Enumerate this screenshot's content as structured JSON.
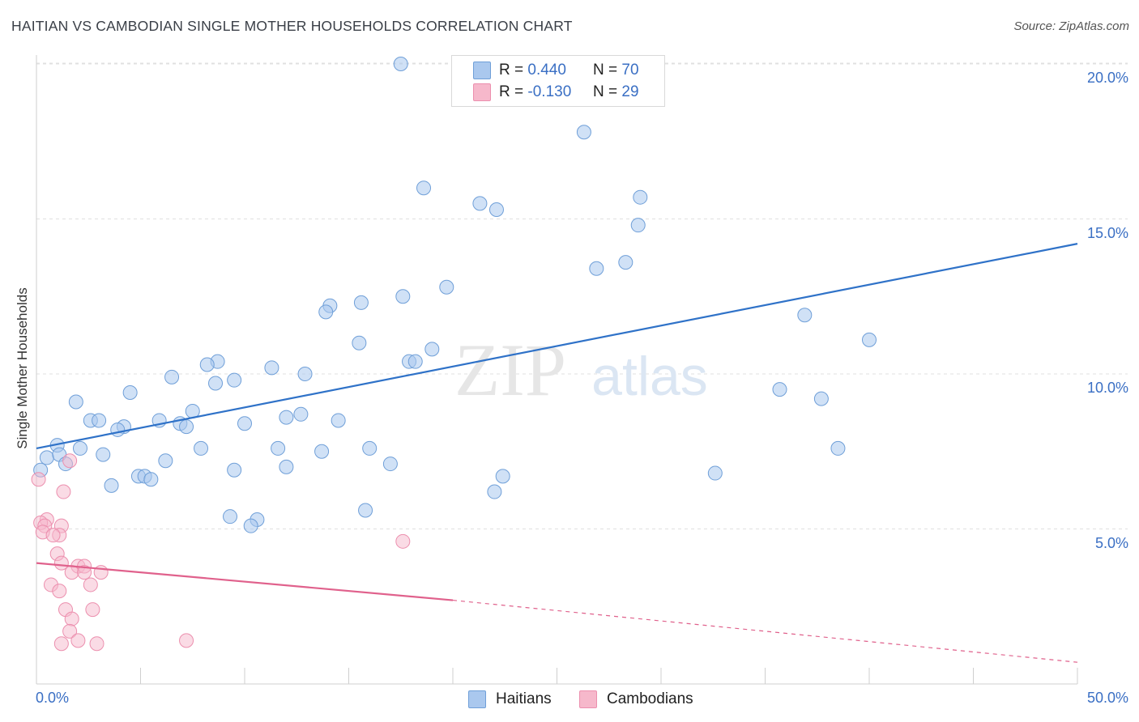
{
  "title": "HAITIAN VS CAMBODIAN SINGLE MOTHER HOUSEHOLDS CORRELATION CHART",
  "source": "Source: ZipAtlas.com",
  "watermark": {
    "zip": "ZIP",
    "atlas": "atlas"
  },
  "legend": {
    "haitians": {
      "r_label": "R =",
      "r_value": "0.440",
      "n_label": "N =",
      "n_value": "70"
    },
    "cambodians": {
      "r_label": "R =",
      "r_value": "-0.130",
      "n_label": "N =",
      "n_value": "29"
    }
  },
  "bottom_legend": {
    "haitians": "Haitians",
    "cambodians": "Cambodians"
  },
  "colors": {
    "haitians_fill": "#aac8ee",
    "haitians_stroke": "#6f9fd8",
    "haitians_line": "#2f72c8",
    "cambodians_fill": "#f6b8cb",
    "cambodians_stroke": "#ec8fae",
    "cambodians_line": "#e0618c",
    "tick_text": "#3a6fc4",
    "grid": "#e0e0e0"
  },
  "chart_data": {
    "type": "scatter",
    "title": "HAITIAN VS CAMBODIAN SINGLE MOTHER HOUSEHOLDS CORRELATION CHART",
    "xlabel": "",
    "ylabel": "Single Mother Households",
    "xlim": [
      0,
      50
    ],
    "ylim": [
      0,
      20.5
    ],
    "x_tick_labels": [
      "0.0%",
      "50.0%"
    ],
    "y_tick_values": [
      5,
      10,
      15,
      20
    ],
    "y_tick_labels": [
      "5.0%",
      "10.0%",
      "15.0%",
      "20.0%"
    ],
    "grid": "horizontal dashed",
    "legend_position": "top-center",
    "series": [
      {
        "name": "Haitians",
        "r": 0.44,
        "n": 70,
        "trend": {
          "x": [
            0,
            50
          ],
          "y": [
            7.6,
            14.2
          ],
          "style": "solid"
        },
        "points": [
          [
            17.5,
            20.0
          ],
          [
            26.3,
            17.8
          ],
          [
            18.6,
            16.0
          ],
          [
            29.0,
            15.7
          ],
          [
            21.3,
            15.5
          ],
          [
            22.1,
            15.3
          ],
          [
            28.9,
            14.8
          ],
          [
            28.3,
            13.6
          ],
          [
            26.9,
            13.4
          ],
          [
            19.7,
            12.8
          ],
          [
            17.6,
            12.5
          ],
          [
            15.6,
            12.3
          ],
          [
            14.1,
            12.2
          ],
          [
            13.9,
            12.0
          ],
          [
            36.9,
            11.9
          ],
          [
            40.0,
            11.1
          ],
          [
            15.5,
            11.0
          ],
          [
            19.0,
            10.8
          ],
          [
            8.7,
            10.4
          ],
          [
            17.9,
            10.4
          ],
          [
            18.2,
            10.4
          ],
          [
            8.2,
            10.3
          ],
          [
            11.3,
            10.2
          ],
          [
            12.9,
            10.0
          ],
          [
            6.5,
            9.9
          ],
          [
            9.5,
            9.8
          ],
          [
            8.6,
            9.7
          ],
          [
            35.7,
            9.5
          ],
          [
            4.5,
            9.4
          ],
          [
            37.7,
            9.2
          ],
          [
            1.9,
            9.1
          ],
          [
            7.5,
            8.8
          ],
          [
            12.7,
            8.7
          ],
          [
            12.0,
            8.6
          ],
          [
            2.6,
            8.5
          ],
          [
            3.0,
            8.5
          ],
          [
            5.9,
            8.5
          ],
          [
            14.5,
            8.5
          ],
          [
            6.9,
            8.4
          ],
          [
            10.0,
            8.4
          ],
          [
            7.2,
            8.3
          ],
          [
            4.2,
            8.3
          ],
          [
            3.9,
            8.2
          ],
          [
            1.0,
            7.7
          ],
          [
            2.1,
            7.6
          ],
          [
            7.9,
            7.6
          ],
          [
            11.6,
            7.6
          ],
          [
            16.0,
            7.6
          ],
          [
            13.7,
            7.5
          ],
          [
            38.5,
            7.6
          ],
          [
            3.2,
            7.4
          ],
          [
            0.5,
            7.3
          ],
          [
            1.1,
            7.4
          ],
          [
            0.2,
            6.9
          ],
          [
            6.2,
            7.2
          ],
          [
            17.0,
            7.1
          ],
          [
            1.4,
            7.1
          ],
          [
            12.0,
            7.0
          ],
          [
            9.5,
            6.9
          ],
          [
            32.6,
            6.8
          ],
          [
            4.9,
            6.7
          ],
          [
            5.2,
            6.7
          ],
          [
            22.4,
            6.7
          ],
          [
            5.5,
            6.6
          ],
          [
            3.6,
            6.4
          ],
          [
            22.0,
            6.2
          ],
          [
            9.3,
            5.4
          ],
          [
            10.6,
            5.3
          ],
          [
            15.8,
            5.6
          ],
          [
            10.3,
            5.1
          ]
        ]
      },
      {
        "name": "Cambodians",
        "r": -0.13,
        "n": 29,
        "trend": {
          "x": [
            0,
            20
          ],
          "y": [
            3.9,
            2.7
          ],
          "x_dashed_end": 50,
          "y_dashed_end": 0.7,
          "style": "solid then dashed"
        },
        "points": [
          [
            0.1,
            6.6
          ],
          [
            1.6,
            7.2
          ],
          [
            1.3,
            6.2
          ],
          [
            0.5,
            5.3
          ],
          [
            0.2,
            5.2
          ],
          [
            0.4,
            5.1
          ],
          [
            1.2,
            5.1
          ],
          [
            0.3,
            4.9
          ],
          [
            1.1,
            4.8
          ],
          [
            0.8,
            4.8
          ],
          [
            17.6,
            4.6
          ],
          [
            1.0,
            4.2
          ],
          [
            1.2,
            3.9
          ],
          [
            2.0,
            3.8
          ],
          [
            2.3,
            3.8
          ],
          [
            1.7,
            3.6
          ],
          [
            2.3,
            3.6
          ],
          [
            3.1,
            3.6
          ],
          [
            0.7,
            3.2
          ],
          [
            2.6,
            3.2
          ],
          [
            1.1,
            3.0
          ],
          [
            1.4,
            2.4
          ],
          [
            2.7,
            2.4
          ],
          [
            1.7,
            2.1
          ],
          [
            1.6,
            1.7
          ],
          [
            2.0,
            1.4
          ],
          [
            1.2,
            1.3
          ],
          [
            2.9,
            1.3
          ],
          [
            7.2,
            1.4
          ]
        ]
      }
    ]
  }
}
